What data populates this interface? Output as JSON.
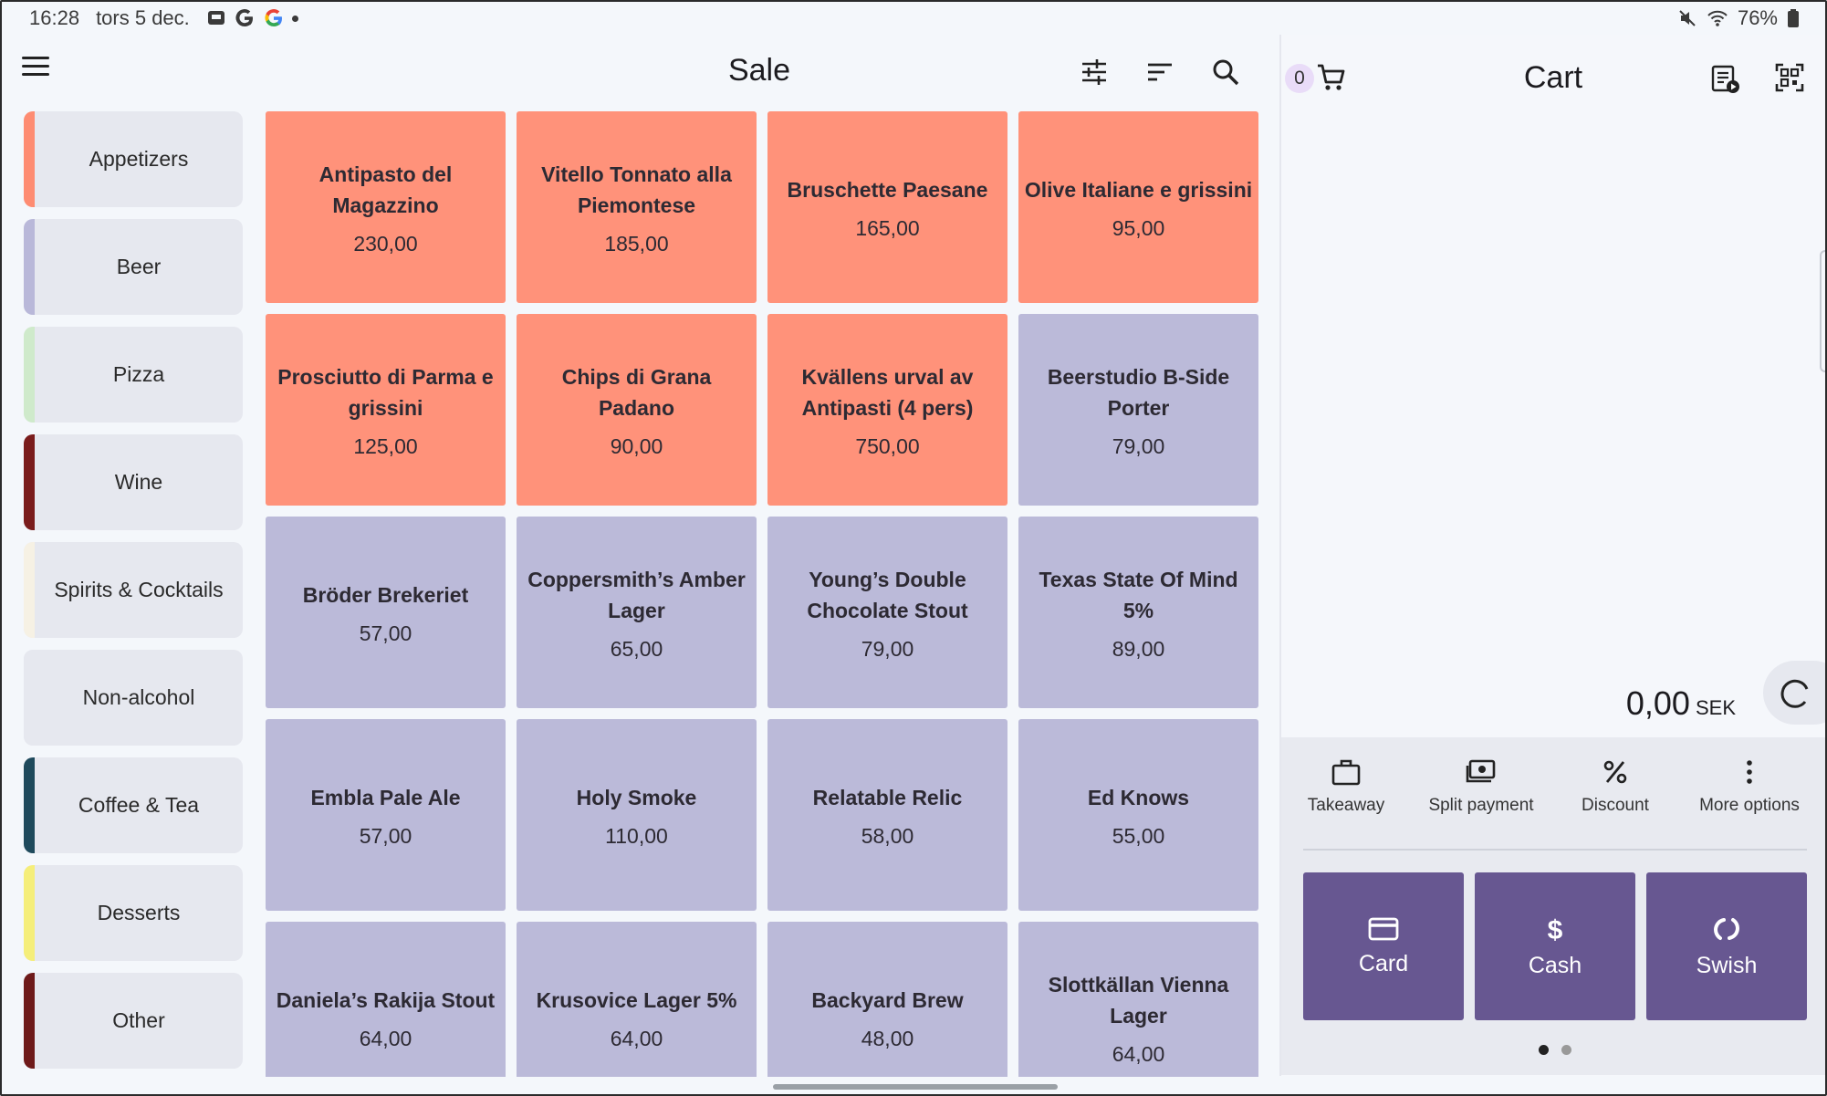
{
  "status_bar": {
    "time": "16:28",
    "date": "tors 5 dec.",
    "battery": "76%"
  },
  "header": {
    "title": "Sale"
  },
  "categories": [
    {
      "label": "Appetizers",
      "color": "#fe8c72"
    },
    {
      "label": "Beer",
      "color": "#b9b8d9"
    },
    {
      "label": "Pizza",
      "color": "#cfeacb"
    },
    {
      "label": "Wine",
      "color": "#7a1c1c"
    },
    {
      "label": "Spirits & Cocktails",
      "color": "#f6f1e4"
    },
    {
      "label": "Non-alcohol",
      "color": "#e6e8ef"
    },
    {
      "label": "Coffee & Tea",
      "color": "#1f4a5c"
    },
    {
      "label": "Desserts",
      "color": "#f5ee7a"
    },
    {
      "label": "Other",
      "color": "#6e1a1a"
    }
  ],
  "products": [
    {
      "name": "Antipasto del Magazzino",
      "price": "230,00",
      "color": "#ff927a"
    },
    {
      "name": "Vitello Tonnato alla Piemontese",
      "price": "185,00",
      "color": "#ff927a"
    },
    {
      "name": "Bruschette Paesane",
      "price": "165,00",
      "color": "#ff927a"
    },
    {
      "name": "Olive Italiane e grissini",
      "price": "95,00",
      "color": "#ff927a"
    },
    {
      "name": "Prosciutto di Parma e grissini",
      "price": "125,00",
      "color": "#ff927a"
    },
    {
      "name": "Chips di Grana Padano",
      "price": "90,00",
      "color": "#ff927a"
    },
    {
      "name": "Kvällens urval av Antipasti (4 pers)",
      "price": "750,00",
      "color": "#ff927a"
    },
    {
      "name": "Beerstudio B-Side Porter",
      "price": "79,00",
      "color": "#bbbad9"
    },
    {
      "name": "Bröder Brekeriet",
      "price": "57,00",
      "color": "#bbbad9"
    },
    {
      "name": "Coppersmith’s Amber Lager",
      "price": "65,00",
      "color": "#bbbad9"
    },
    {
      "name": "Young’s Double Chocolate Stout",
      "price": "79,00",
      "color": "#bbbad9"
    },
    {
      "name": "Texas State Of Mind 5%",
      "price": "89,00",
      "color": "#bbbad9"
    },
    {
      "name": "Embla Pale Ale",
      "price": "57,00",
      "color": "#bbbad9"
    },
    {
      "name": "Holy Smoke",
      "price": "110,00",
      "color": "#bbbad9"
    },
    {
      "name": "Relatable Relic",
      "price": "58,00",
      "color": "#bbbad9"
    },
    {
      "name": "Ed Knows",
      "price": "55,00",
      "color": "#bbbad9"
    },
    {
      "name": "Daniela’s Rakija Stout",
      "price": "64,00",
      "color": "#bbbad9"
    },
    {
      "name": "Krusovice Lager 5%",
      "price": "64,00",
      "color": "#bbbad9"
    },
    {
      "name": "Backyard Brew",
      "price": "48,00",
      "color": "#bbbad9"
    },
    {
      "name": "Slottkällan Vienna Lager",
      "price": "64,00",
      "color": "#bbbad9"
    }
  ],
  "cart": {
    "count": "0",
    "title": "Cart",
    "total": "0,00",
    "currency": "SEK",
    "actions": {
      "takeaway": "Takeaway",
      "split": "Split payment",
      "discount": "Discount",
      "more": "More options"
    },
    "payments": {
      "card": "Card",
      "cash": "Cash",
      "swish": "Swish"
    },
    "accent": "#675791"
  }
}
